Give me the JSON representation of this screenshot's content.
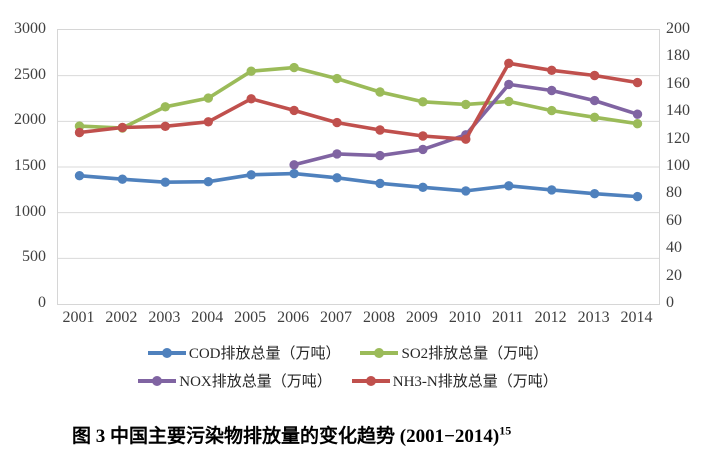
{
  "caption": {
    "text": "图 3 中国主要污染物排放量的变化趋势 (2001−2014)",
    "superscript": "15"
  },
  "chart_data": {
    "type": "line",
    "title": "",
    "xlabel": "",
    "ylabel_left": "",
    "ylabel_right": "",
    "grid": true,
    "legend_position": "bottom",
    "background": "#ffffff",
    "gridline_color": "#d9d9d9",
    "tick_color": "#404040",
    "x_categories": [
      "2001",
      "2002",
      "2003",
      "2004",
      "2005",
      "2006",
      "2007",
      "2008",
      "2009",
      "2010",
      "2011",
      "2012",
      "2013",
      "2014"
    ],
    "left_axis": {
      "min": 0,
      "max": 3000,
      "step": 500,
      "ticks": [
        "3000",
        "2500",
        "2000",
        "1500",
        "1000",
        "500",
        "0"
      ]
    },
    "right_axis": {
      "min": 0,
      "max": 200,
      "step": 20,
      "ticks": [
        "200",
        "180",
        "160",
        "140",
        "120",
        "100",
        "80",
        "60",
        "40",
        "20",
        "0"
      ]
    },
    "series": [
      {
        "name": "COD排放总量（万吨）",
        "color": "#4F81BD",
        "axis": "left",
        "values": [
          1404.8,
          1366.9,
          1333.6,
          1339.2,
          1414.2,
          1428.2,
          1381.8,
          1320.7,
          1277.5,
          1238.1,
          1293.8,
          1249.0,
          1208.0,
          1176.4
        ]
      },
      {
        "name": "SO2排放总量（万吨）",
        "color": "#9BBB59",
        "axis": "left",
        "values": [
          1947.8,
          1926.6,
          2158.7,
          2254.9,
          2549.3,
          2588.8,
          2468.1,
          2321.2,
          2214.4,
          2185.1,
          2217.9,
          2117.6,
          2043.9,
          1974.4
        ]
      },
      {
        "name": "NOX排放总量（万吨）",
        "color": "#8064A2",
        "axis": "left",
        "values": [
          null,
          null,
          null,
          null,
          null,
          1523.8,
          1643.4,
          1624.5,
          1692.7,
          1852.4,
          2404.3,
          2337.8,
          2227.4,
          2078.0
        ]
      },
      {
        "name": "NH3-N排放总量（万吨）",
        "color": "#C0504D",
        "axis": "right",
        "values": [
          125.2,
          128.8,
          129.7,
          133.0,
          149.8,
          141.3,
          132.4,
          127.0,
          122.6,
          120.3,
          175.7,
          170.6,
          166.8,
          161.6
        ]
      }
    ],
    "legend_rows": [
      [
        0,
        1
      ],
      [
        2,
        3
      ]
    ]
  }
}
